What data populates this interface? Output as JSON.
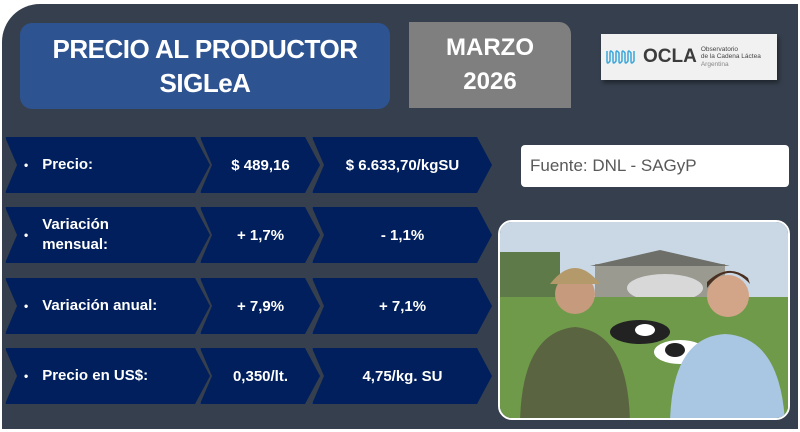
{
  "header": {
    "title_line1": "PRECIO AL PRODUCTOR",
    "title_line2": "SIGLeA",
    "month": "MARZO",
    "year": "2026"
  },
  "logo": {
    "name": "OCLA",
    "line1": "Observatorio",
    "line2": "de la Cadena Láctea",
    "line3": "Argentina"
  },
  "source": "Fuente: DNL - SAGyP",
  "rows": [
    {
      "label": "Precio:",
      "per_liter": "$ 489,16",
      "per_kg": "$ 6.633,70/kgSU"
    },
    {
      "label": "Variación mensual:",
      "per_liter": "+ 1,7%",
      "per_kg": "- 1,1%"
    },
    {
      "label": "Variación anual:",
      "per_liter": "+ 7,9%",
      "per_kg": "+ 7,1%"
    },
    {
      "label": "Precio en US$:",
      "per_liter": "0,350/lt.",
      "per_kg": "4,75/kg. SU"
    }
  ],
  "colors": {
    "background": "#353f4d",
    "title_box": "#2e5391",
    "date_box": "#7f7f7f",
    "row": "#001f5c"
  }
}
